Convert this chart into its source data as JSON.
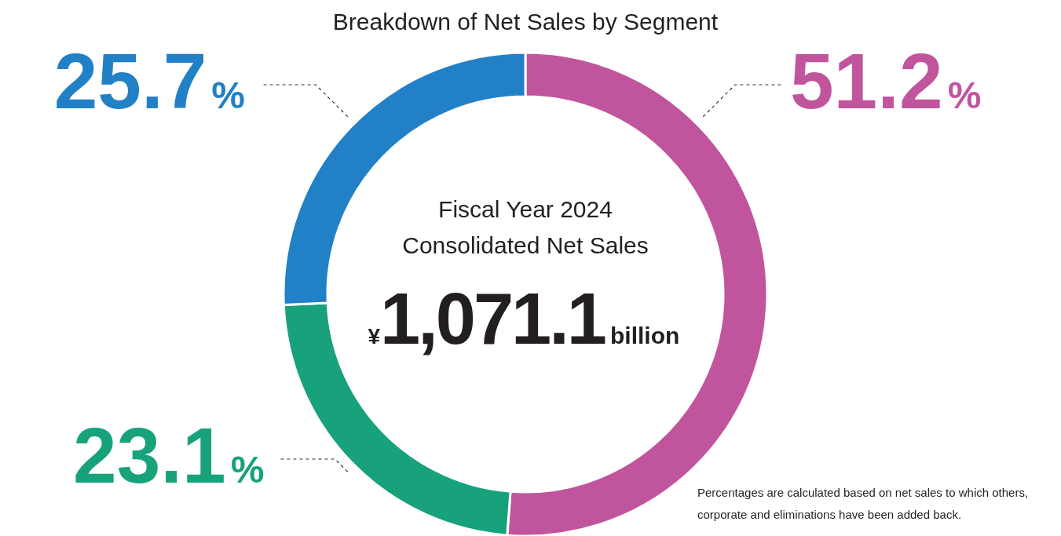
{
  "chart_data": {
    "type": "donut",
    "title": "Breakdown of Net Sales by Segment",
    "categories": [
      null,
      null,
      null
    ],
    "values": [
      51.2,
      23.1,
      25.7
    ],
    "colors": [
      "#c0559e",
      "#17a27c",
      "#2280c6"
    ],
    "value_labels": [
      "51.2%",
      "23.1%",
      "25.7%"
    ],
    "annotations": [
      "Fiscal Year 2024",
      "Consolidated Net Sales",
      "¥1,071.1",
      "billion",
      "Percentages are calculated based on net sales to which others, corporate and eliminations have been added back."
    ]
  }
}
